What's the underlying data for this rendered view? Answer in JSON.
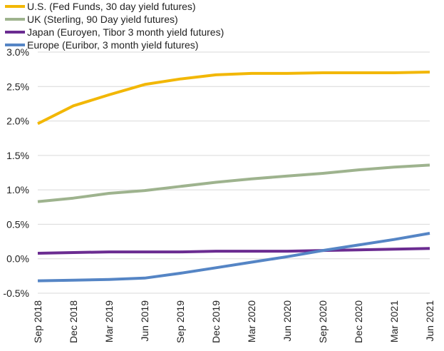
{
  "chart_data": {
    "type": "line",
    "title": "",
    "xlabel": "",
    "ylabel": "",
    "categories": [
      "Sep 2018",
      "Dec 2018",
      "Mar 2019",
      "Jun 2019",
      "Sep 2019",
      "Dec 2019",
      "Mar 2020",
      "Jun 2020",
      "Sep 2020",
      "Dec 2020",
      "Mar 2021",
      "Jun 2021"
    ],
    "ylim": [
      -0.5,
      3.0
    ],
    "yticks": [
      {
        "value": 3.0,
        "label": "3.0%"
      },
      {
        "value": 2.5,
        "label": "2.5%"
      },
      {
        "value": 2.0,
        "label": "2.0%"
      },
      {
        "value": 1.5,
        "label": "1.5%"
      },
      {
        "value": 1.0,
        "label": "1.0%"
      },
      {
        "value": 0.5,
        "label": "0.5%"
      },
      {
        "value": 0.0,
        "label": "0.0%"
      },
      {
        "value": -0.5,
        "label": "-0.5%"
      }
    ],
    "grid": true,
    "legend_position": "top-left",
    "series": [
      {
        "name": "U.S. (Fed Funds, 30 day yield futures)",
        "color": "#F2B705",
        "values": [
          1.96,
          2.22,
          2.38,
          2.53,
          2.61,
          2.67,
          2.69,
          2.69,
          2.7,
          2.7,
          2.7,
          2.71
        ]
      },
      {
        "name": "UK (Sterling, 90 Day yield futures)",
        "color": "#9EB38E",
        "values": [
          0.83,
          0.88,
          0.95,
          0.99,
          1.05,
          1.11,
          1.16,
          1.2,
          1.24,
          1.29,
          1.33,
          1.36
        ]
      },
      {
        "name": "Japan (Euroyen, Tibor 3 month yield futures)",
        "color": "#6B2C91",
        "values": [
          0.08,
          0.09,
          0.1,
          0.1,
          0.1,
          0.11,
          0.11,
          0.11,
          0.12,
          0.13,
          0.14,
          0.15
        ]
      },
      {
        "name": "Europe (Euribor, 3 month yield futures)",
        "color": "#5585C5",
        "values": [
          -0.32,
          -0.31,
          -0.3,
          -0.28,
          -0.21,
          -0.13,
          -0.05,
          0.03,
          0.12,
          0.2,
          0.28,
          0.37
        ]
      }
    ]
  }
}
